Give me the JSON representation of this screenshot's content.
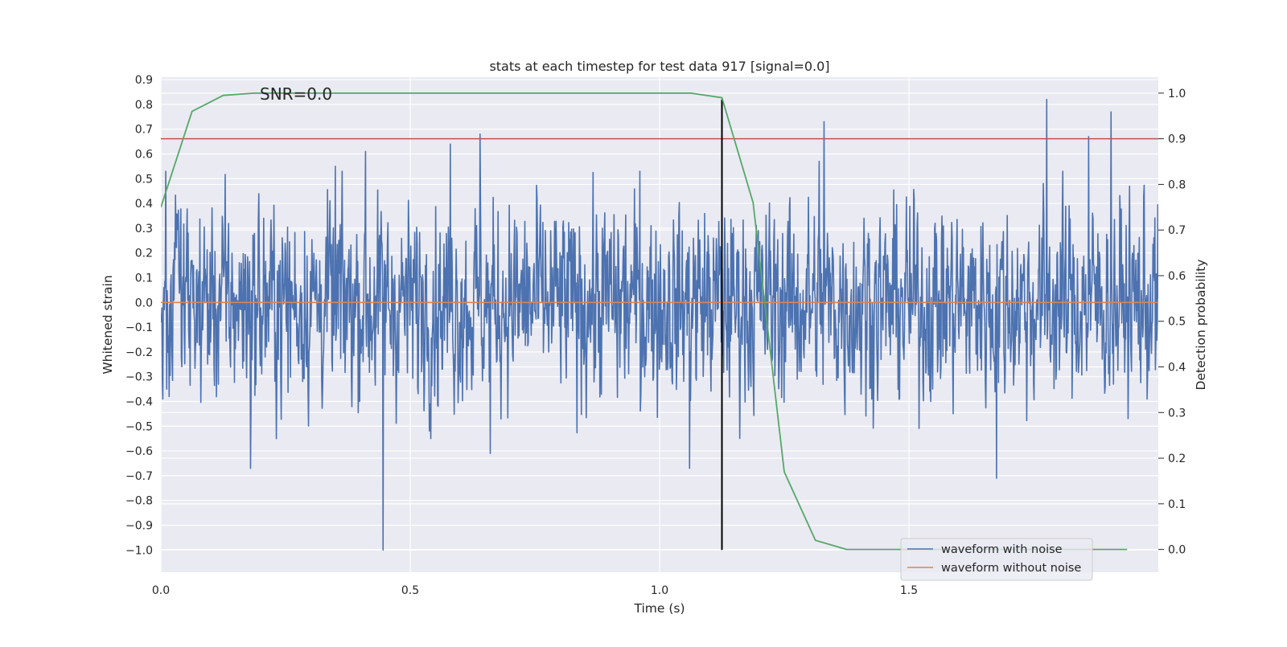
{
  "chart_data": {
    "type": "line",
    "title": "stats at each timestep for test data 917 [signal=0.0]",
    "xlabel": "Time (s)",
    "ylabel": "Whitened strain",
    "y2label": "Detection probability",
    "annotation": "SNR=0.0",
    "xlim": [
      0.0,
      2.0
    ],
    "ylim": [
      -1.09,
      0.91
    ],
    "y2lim": [
      -0.05,
      1.035
    ],
    "x_ticks": [
      "0.0",
      "0.5",
      "1.0",
      "1.5"
    ],
    "y_ticks": [
      "0.9",
      "0.8",
      "0.7",
      "0.6",
      "0.5",
      "0.4",
      "0.3",
      "0.2",
      "0.1",
      "0.0",
      "−0.1",
      "−0.2",
      "−0.3",
      "−0.4",
      "−0.5",
      "−0.6",
      "−0.7",
      "−0.8",
      "−0.9",
      "−1.0"
    ],
    "y2_ticks": [
      "1.0",
      "0.9",
      "0.8",
      "0.7",
      "0.6",
      "0.5",
      "0.4",
      "0.3",
      "0.2",
      "0.1",
      "0.0"
    ],
    "grid": true,
    "legend_position": "lower-right",
    "series": [
      {
        "name": "waveform with noise",
        "color": "#4c72b0",
        "axis": "left",
        "kind": "noisy-waveform",
        "x_range": [
          0.0,
          2.0
        ],
        "samples": 2048,
        "typical_range": [
          -0.45,
          0.45
        ],
        "notable_points": [
          {
            "x": 0.01,
            "y": 0.53
          },
          {
            "x": 0.18,
            "y": -0.67
          },
          {
            "x": 0.35,
            "y": 0.55
          },
          {
            "x": 0.41,
            "y": 0.61
          },
          {
            "x": 0.446,
            "y": -1.0
          },
          {
            "x": 0.58,
            "y": 0.64
          },
          {
            "x": 0.64,
            "y": 0.68
          },
          {
            "x": 0.66,
            "y": -0.61
          },
          {
            "x": 0.96,
            "y": 0.53
          },
          {
            "x": 1.06,
            "y": -0.67
          },
          {
            "x": 1.32,
            "y": 0.57
          },
          {
            "x": 1.33,
            "y": 0.73
          },
          {
            "x": 1.676,
            "y": -0.71
          },
          {
            "x": 1.776,
            "y": 0.82
          },
          {
            "x": 1.86,
            "y": 0.67
          },
          {
            "x": 1.905,
            "y": 0.77
          }
        ]
      },
      {
        "name": "waveform without noise",
        "color": "#dd8452",
        "axis": "left",
        "x": [
          0.0,
          2.0
        ],
        "y": [
          0.0,
          0.0
        ]
      },
      {
        "name": "",
        "color": "#55a868",
        "axis": "right",
        "x": [
          0.0,
          0.0625,
          0.125,
          0.1875,
          0.25,
          0.3125,
          0.375,
          0.4375,
          0.5,
          0.5625,
          0.625,
          0.6875,
          0.75,
          0.8125,
          0.875,
          0.9375,
          1.0,
          1.0625,
          1.125,
          1.1875,
          1.25,
          1.3125,
          1.375,
          1.4375,
          1.5,
          1.5625,
          1.625,
          1.6875,
          1.75,
          1.8125,
          1.875,
          1.9375
        ],
        "y": [
          0.75,
          0.96,
          0.995,
          1.0,
          1.0,
          1.0,
          1.0,
          1.0,
          1.0,
          1.0,
          1.0,
          1.0,
          1.0,
          1.0,
          1.0,
          1.0,
          1.0,
          1.0,
          0.99,
          0.76,
          0.17,
          0.02,
          0.0,
          0.0,
          0.0,
          0.0,
          0.0,
          0.0,
          0.0,
          0.0,
          0.0,
          0.0
        ]
      }
    ],
    "reference_lines": [
      {
        "orientation": "horizontal",
        "axis": "right",
        "value": 0.9,
        "color": "#c44e52"
      },
      {
        "orientation": "vertical",
        "value": 1.125,
        "y_range": [
          -1.0,
          0.82
        ],
        "color": "#000000"
      }
    ]
  }
}
